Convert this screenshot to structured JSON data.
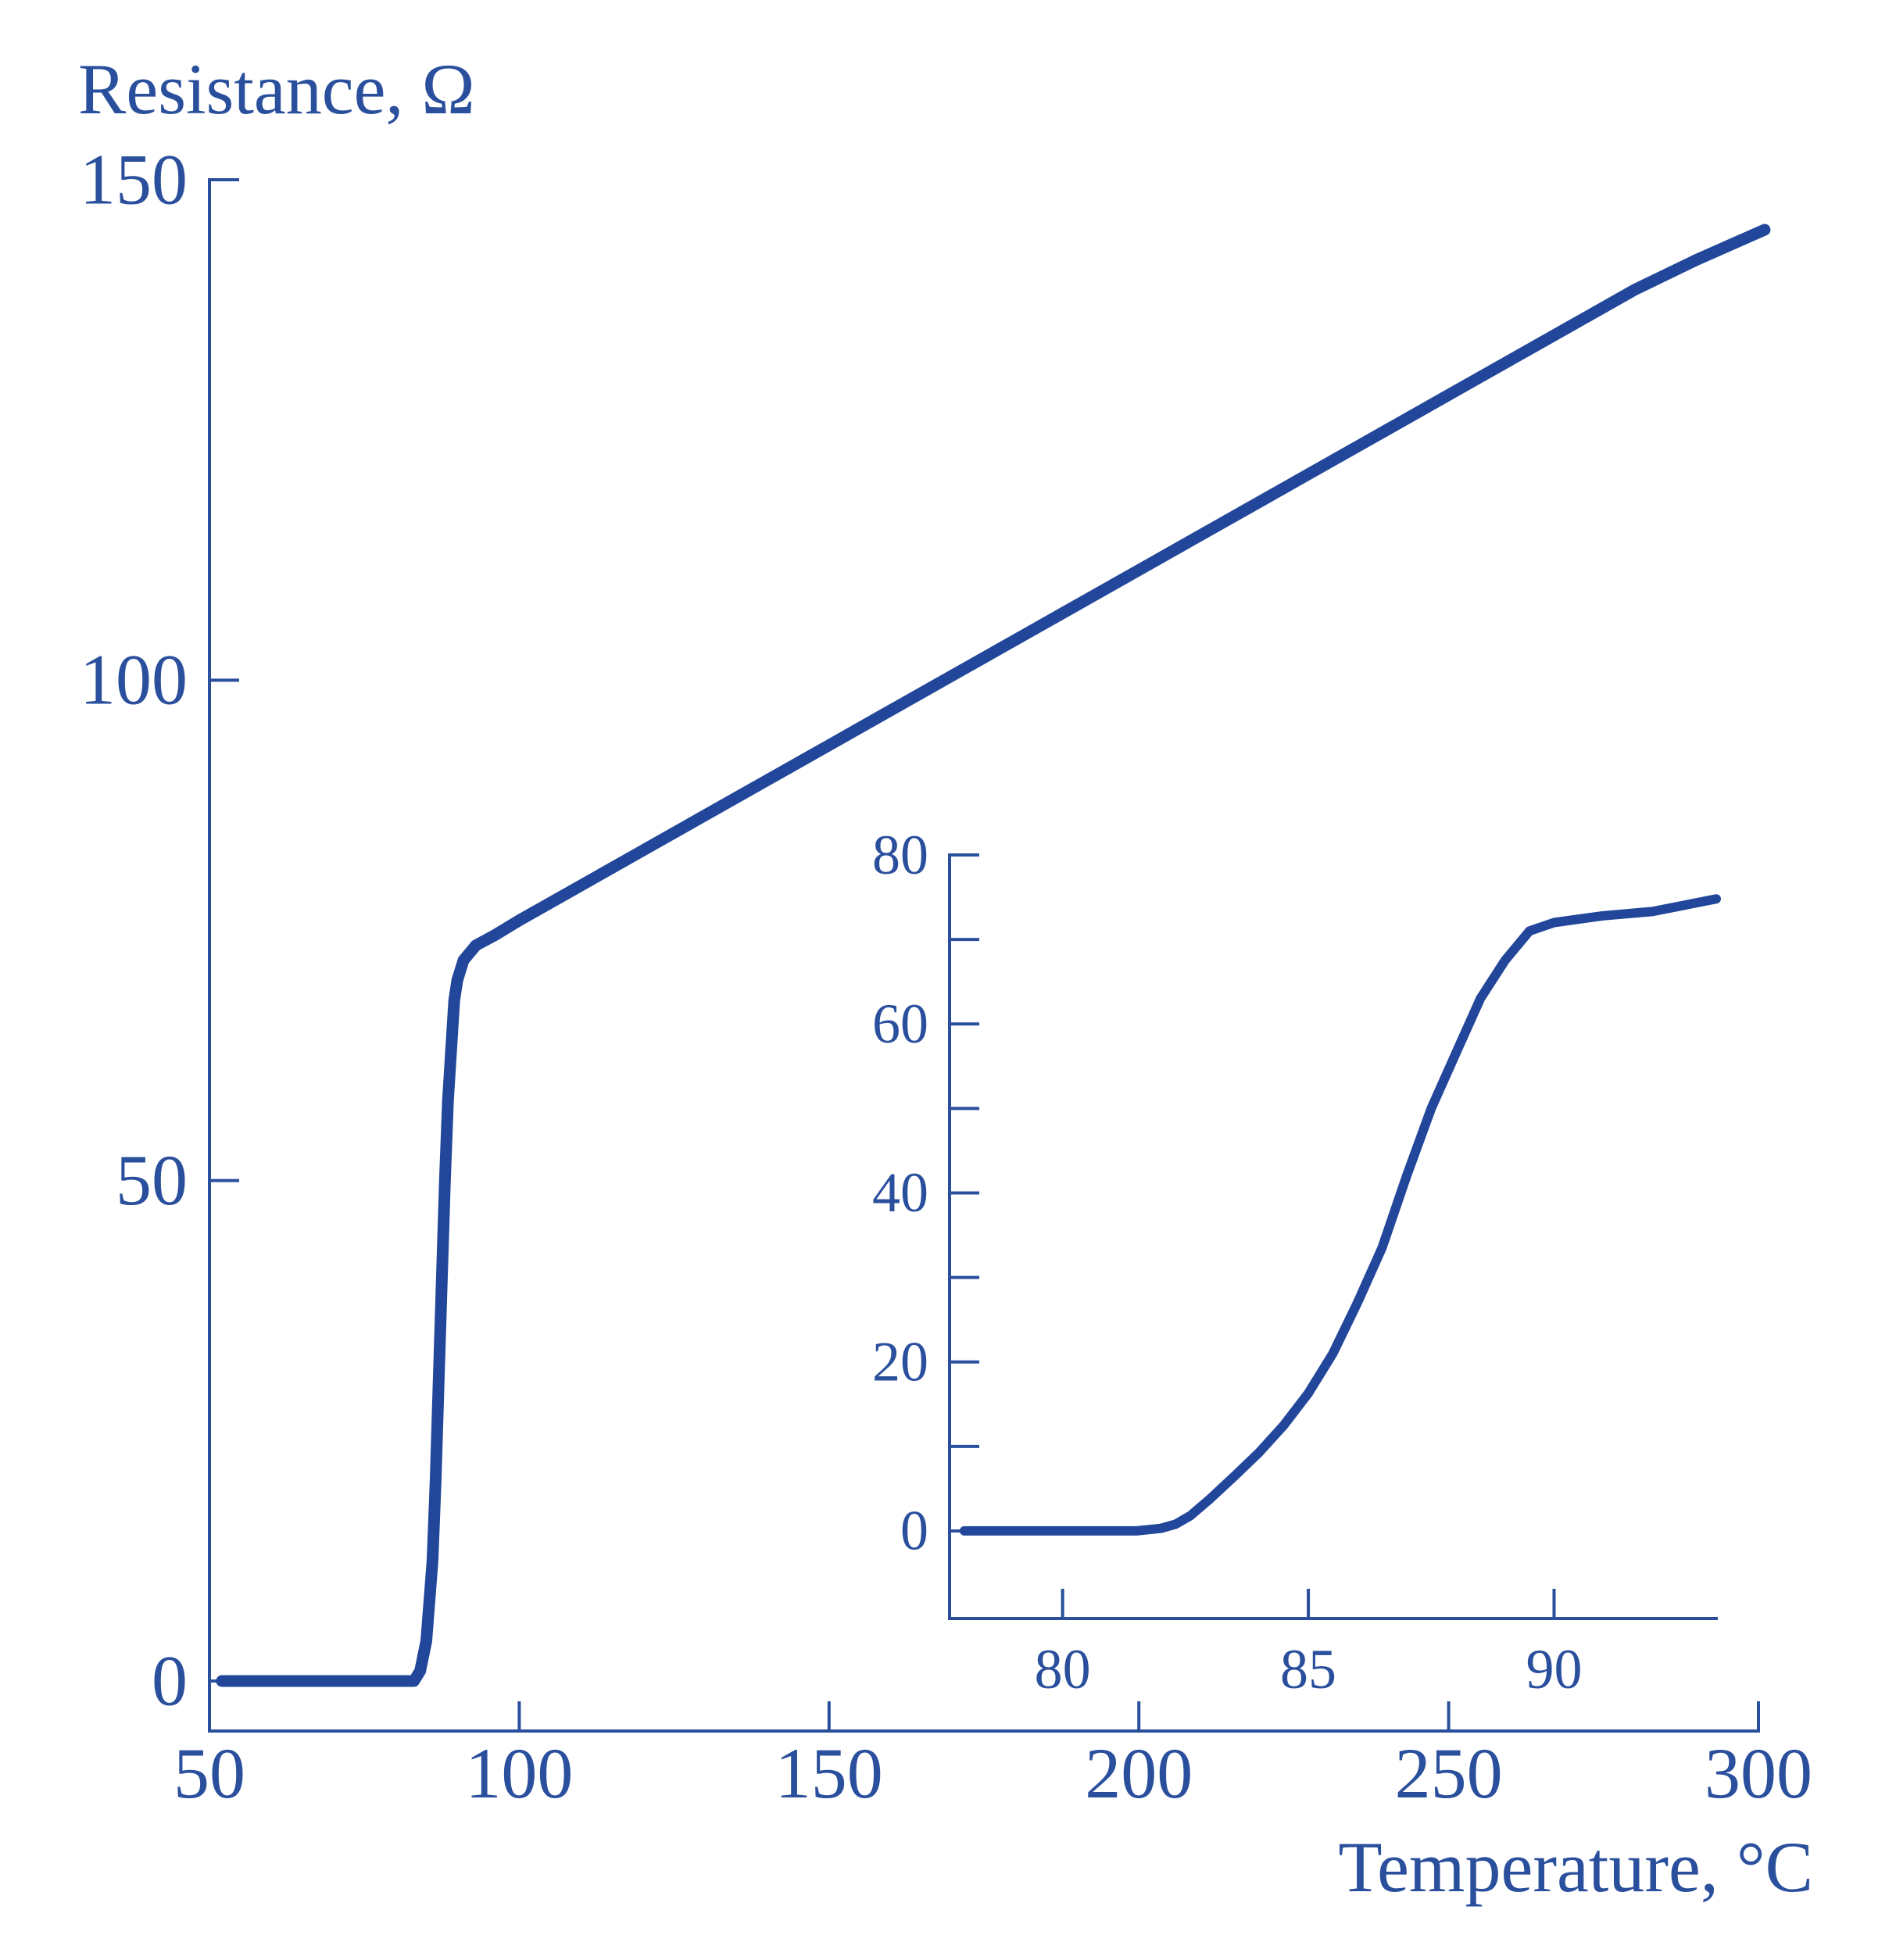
{
  "chart_data": [
    {
      "type": "line",
      "panel": "main",
      "xlabel": "Temperature, °C",
      "ylabel": "Resistance, Ω",
      "xlim": [
        50,
        300
      ],
      "ylim": [
        -5,
        150
      ],
      "xticks": [
        50,
        100,
        150,
        200,
        250,
        300
      ],
      "yticks": [
        0,
        50,
        100,
        150
      ],
      "grid": false,
      "series": [
        {
          "x": [
            52,
            60,
            70,
            80,
            83,
            84,
            85,
            86,
            86.5,
            87,
            87.5,
            88,
            88.5,
            89,
            89.5,
            90,
            91,
            93,
            96,
            100,
            110,
            120,
            130,
            140,
            150,
            160,
            170,
            180,
            190,
            200,
            210,
            220,
            230,
            240,
            250,
            260,
            270,
            280,
            290,
            301
          ],
          "y": [
            0,
            0,
            0,
            0,
            0,
            1,
            4,
            12,
            20,
            30,
            40,
            50,
            58,
            63,
            68,
            70,
            72,
            73.5,
            74.5,
            76,
            79.5,
            83,
            86.5,
            90,
            93.5,
            97,
            100.5,
            104,
            107.5,
            111,
            114.5,
            118,
            121.5,
            125,
            128.5,
            132,
            135.5,
            139,
            142,
            145
          ]
        }
      ]
    },
    {
      "type": "line",
      "panel": "inset",
      "xlabel": "",
      "ylabel": "",
      "xlim": [
        77.7,
        93.3
      ],
      "ylim": [
        -5,
        80
      ],
      "xticks": [
        80,
        85,
        90
      ],
      "yticks": [
        0,
        20,
        40,
        60,
        80
      ],
      "grid": false,
      "series": [
        {
          "x": [
            78,
            79,
            80,
            81,
            81.5,
            82,
            82.3,
            82.6,
            83,
            83.5,
            84,
            84.5,
            85,
            85.5,
            86,
            86.5,
            87,
            87.5,
            88,
            88.5,
            89,
            89.5,
            90,
            91,
            92,
            93.3
          ],
          "y": [
            0,
            0,
            0,
            0,
            0,
            0.3,
            0.8,
            1.8,
            3.8,
            6.5,
            9.3,
            12.5,
            16.3,
            21,
            27,
            33.5,
            42,
            50,
            56.5,
            63,
            67.5,
            71,
            72,
            72.8,
            73.3,
            74.8
          ]
        }
      ]
    }
  ]
}
